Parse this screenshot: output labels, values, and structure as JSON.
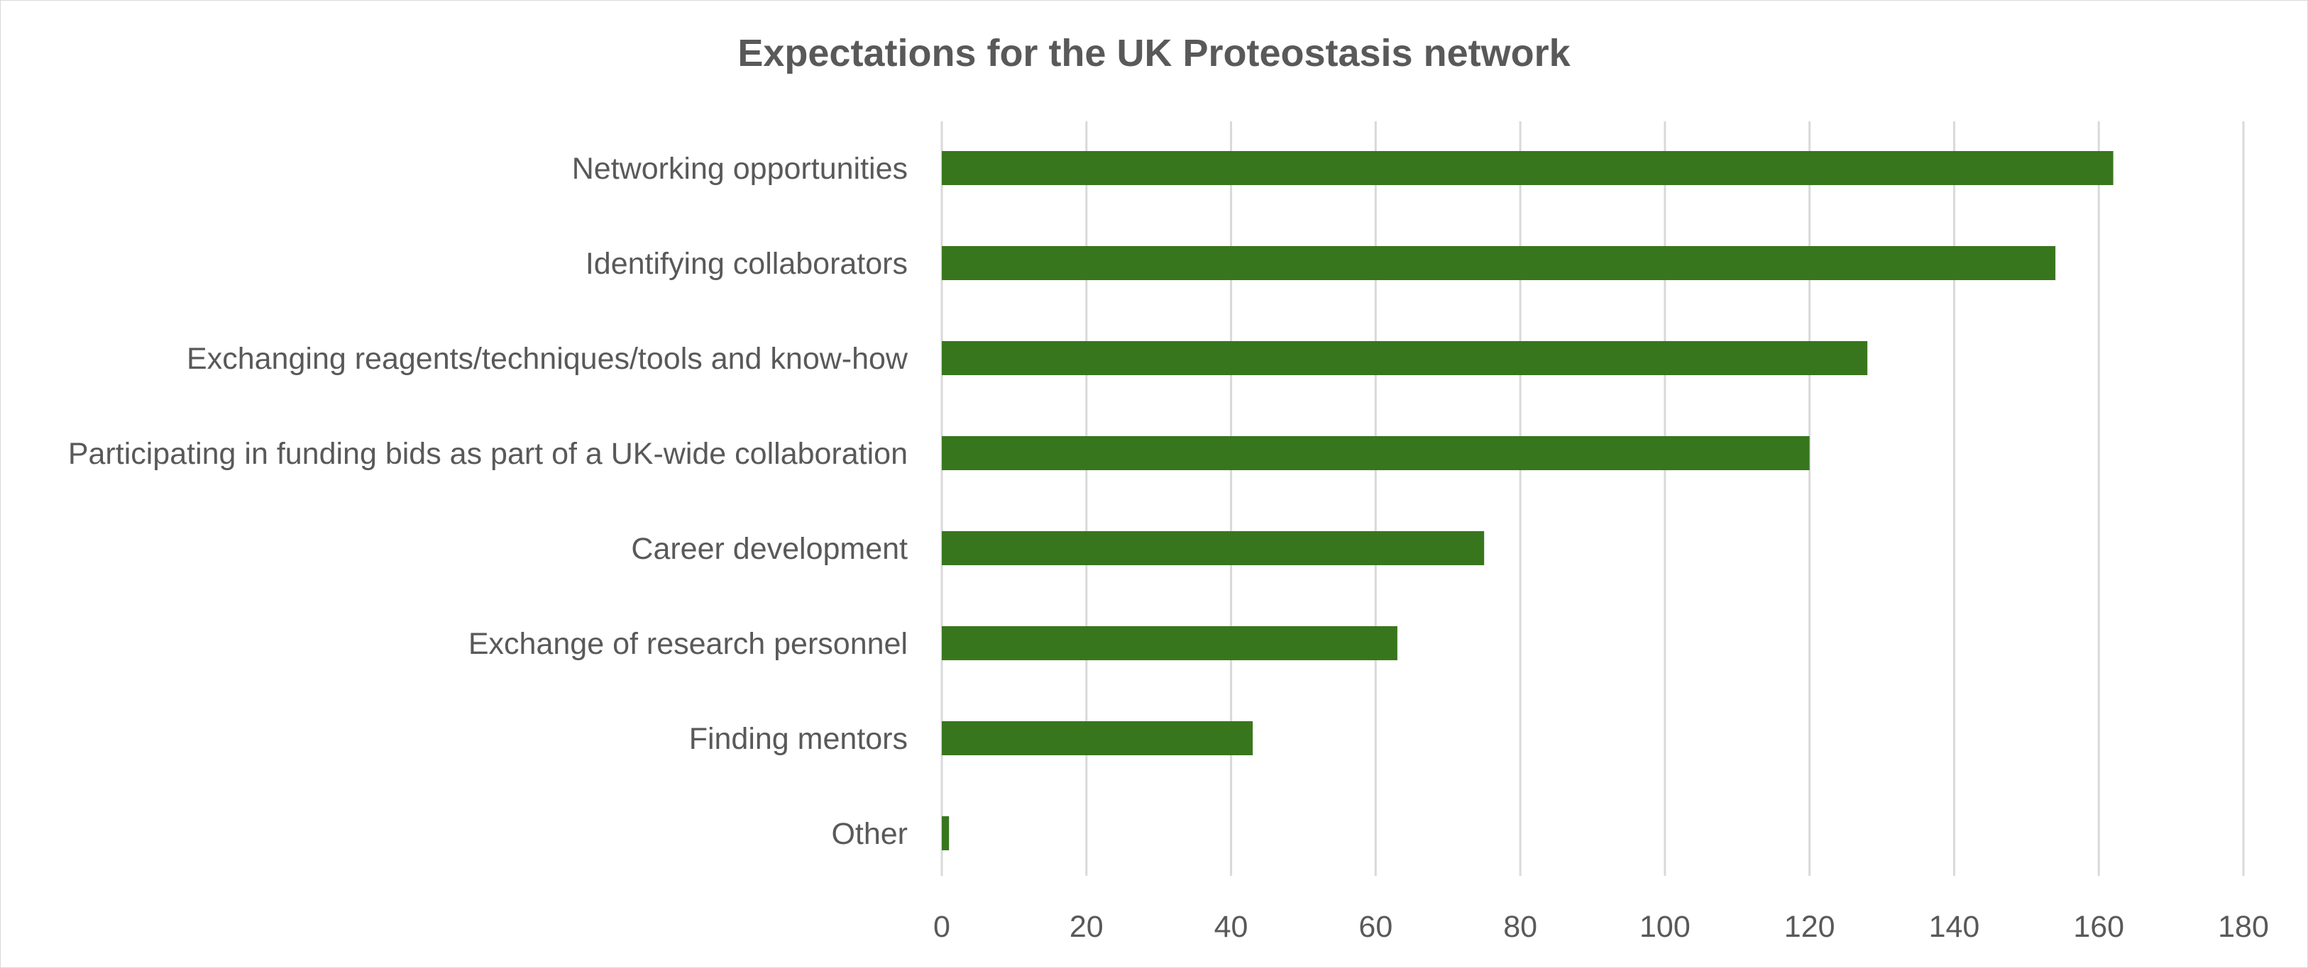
{
  "chart_data": {
    "type": "bar",
    "orientation": "horizontal",
    "title": "Expectations for the UK Proteostasis network",
    "xlabel": "",
    "ylabel": "",
    "categories": [
      "Networking opportunities",
      "Identifying collaborators",
      "Exchanging reagents/techniques/tools and know-how",
      "Participating in funding bids as part of a UK-wide collaboration",
      "Career development",
      "Exchange of research personnel",
      "Finding mentors",
      "Other"
    ],
    "values": [
      162,
      154,
      128,
      120,
      75,
      63,
      43,
      1
    ],
    "xlim": [
      0,
      180
    ],
    "xticks": [
      0,
      20,
      40,
      60,
      80,
      100,
      120,
      140,
      160,
      180
    ],
    "grid": "vertical",
    "legend": "none",
    "bar_color": "#38761d"
  }
}
